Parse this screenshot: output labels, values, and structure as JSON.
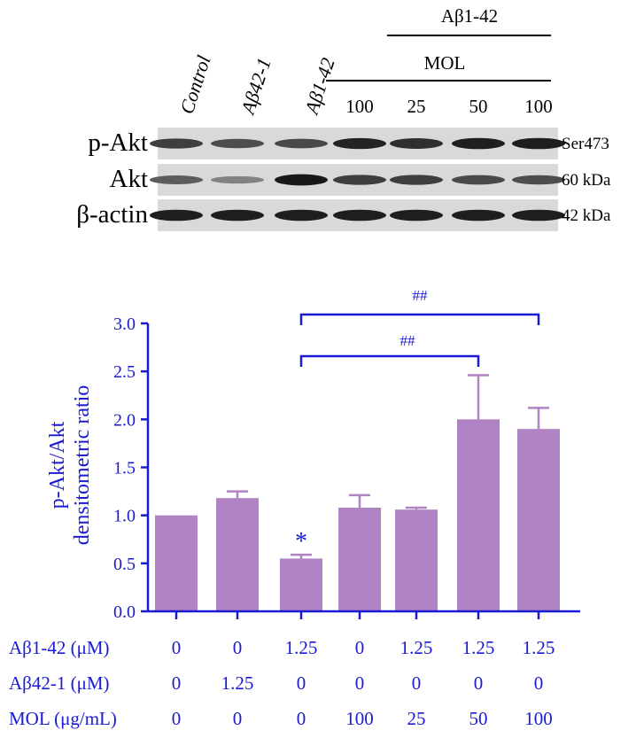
{
  "blot": {
    "lane_labels": [
      "Control",
      "Aβ42-1",
      "Aβ1-42"
    ],
    "group_label_top": "Aβ1-42",
    "group_label_mid": "MOL",
    "mol_doses": [
      "100",
      "25",
      "50",
      "100"
    ],
    "rows": [
      {
        "label": "p-Akt",
        "size": "Ser473",
        "intensities": [
          0.78,
          0.7,
          0.72,
          0.92,
          0.86,
          0.95,
          0.95
        ]
      },
      {
        "label": "Akt",
        "size": "60 kDa",
        "intensities": [
          0.62,
          0.42,
          0.98,
          0.78,
          0.78,
          0.72,
          0.7
        ]
      },
      {
        "label": "β-actin",
        "size": "42 kDa",
        "intensities": [
          0.95,
          0.95,
          0.95,
          0.95,
          0.95,
          0.95,
          0.95
        ]
      }
    ]
  },
  "chart_data": {
    "type": "bar",
    "categories": [
      "1",
      "2",
      "3",
      "4",
      "5",
      "6",
      "7"
    ],
    "values": [
      1.0,
      1.18,
      0.55,
      1.08,
      1.06,
      2.0,
      1.9
    ],
    "errors": [
      0.0,
      0.07,
      0.04,
      0.13,
      0.02,
      0.46,
      0.22
    ],
    "ylabel_line1": "p-Akt/Akt",
    "ylabel_line2": "densitometric ratio",
    "ylim": [
      0.0,
      3.0
    ],
    "yticks": [
      "0.0",
      "0.5",
      "1.0",
      "1.5",
      "2.0",
      "2.5",
      "3.0"
    ],
    "annotations": {
      "star": "*",
      "sig1": "##",
      "sig2": "##"
    },
    "bar_color": "#b083c4",
    "axis_color": "#1a1ad6"
  },
  "conditions": {
    "rows": [
      {
        "label": "Aβ1-42 (μM)",
        "values": [
          "0",
          "0",
          "1.25",
          "0",
          "1.25",
          "1.25",
          "1.25"
        ]
      },
      {
        "label": "Aβ42-1 (μM)",
        "values": [
          "0",
          "1.25",
          "0",
          "0",
          "0",
          "0",
          "0"
        ]
      },
      {
        "label": "MOL (μg/mL)",
        "values": [
          "0",
          "0",
          "0",
          "100",
          "25",
          "50",
          "100"
        ]
      }
    ]
  }
}
